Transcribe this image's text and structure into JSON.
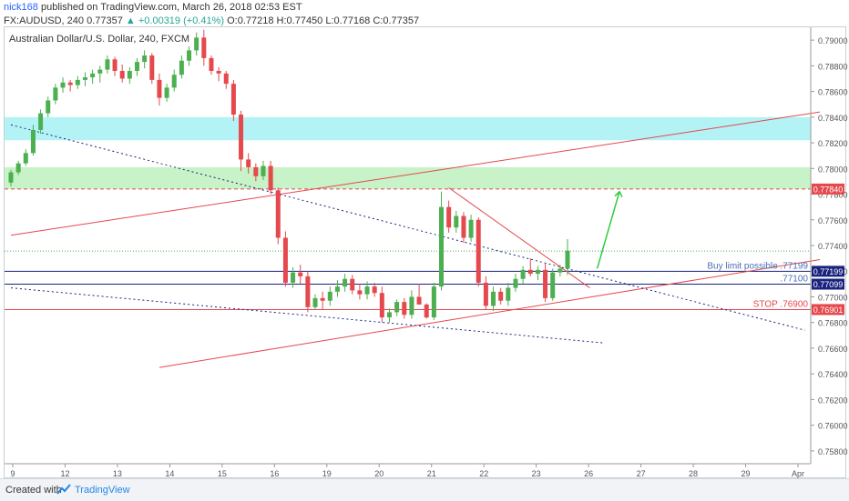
{
  "header": {
    "author": "nick168",
    "published_text": " published on TradingView.com, March 26, 2018 02:53 EST",
    "symbol_line": "FX:AUDUSD, 240  0.77357",
    "change": " ▲ +0.00319 (+0.41%)",
    "ohlc": " O:0.77218 H:0.77450 L:0.77168 C:0.77357"
  },
  "footer": {
    "created_with": "Created with",
    "brand": "TradingView"
  },
  "chart_data": {
    "type": "candlestick",
    "title": "Australian Dollar/U.S. Dollar, 240, FXCM",
    "ylim": [
      0.757,
      0.791
    ],
    "y_ticks": [
      "0.79000",
      "0.78800",
      "0.78600",
      "0.78400",
      "0.78200",
      "0.78000",
      "0.77800",
      "0.77600",
      "0.77400",
      "0.77200",
      "0.77000",
      "0.76800",
      "0.76600",
      "0.76400",
      "0.76200",
      "0.76000",
      "0.75800"
    ],
    "x_tick_labels": [
      "9",
      "12",
      "13",
      "14",
      "15",
      "16",
      "19",
      "20",
      "21",
      "22",
      "23",
      "26",
      "27",
      "28",
      "29",
      "Apr"
    ],
    "colors": {
      "up": "#4caf50",
      "down": "#e5484d",
      "accent_line": "#e5484d",
      "blue_line": "#1a237e",
      "arrow": "#2ecc40"
    },
    "price_labels": [
      {
        "text": "0.77840",
        "price": 0.7784,
        "color": "#e5484d"
      },
      {
        "text": "0.77199",
        "price": 0.77199,
        "color": "#1a237e"
      },
      {
        "text": "0.77099",
        "price": 0.77099,
        "color": "#1a237e"
      },
      {
        "text": "0.76901",
        "price": 0.76901,
        "color": "#e5484d"
      }
    ],
    "annotations": [
      {
        "text": "Buy limit possible .77199",
        "price": 0.77199,
        "color": "#4a6fb5"
      },
      {
        "text": ".77100",
        "price": 0.771,
        "color": "#4a6fb5"
      },
      {
        "text": "STOP .76900",
        "price": 0.769,
        "color": "#e5484d"
      }
    ],
    "zones": [
      {
        "name": "resistance-zone-upper",
        "from": 0.7822,
        "to": 0.784,
        "color": "#b3f3f6"
      },
      {
        "name": "resistance-zone-lower",
        "from": 0.7784,
        "to": 0.7801,
        "color": "#c8f2c8"
      }
    ],
    "candles": [
      [
        0.7789,
        0.7799,
        0.7786,
        0.7797
      ],
      [
        0.7797,
        0.7806,
        0.7795,
        0.7804
      ],
      [
        0.7804,
        0.7815,
        0.7802,
        0.7812
      ],
      [
        0.7812,
        0.7834,
        0.781,
        0.783
      ],
      [
        0.783,
        0.7846,
        0.7827,
        0.7843
      ],
      [
        0.7843,
        0.7856,
        0.784,
        0.7853
      ],
      [
        0.7853,
        0.7866,
        0.785,
        0.7863
      ],
      [
        0.7863,
        0.7871,
        0.7859,
        0.7867
      ],
      [
        0.7867,
        0.7869,
        0.786,
        0.7865
      ],
      [
        0.7865,
        0.7872,
        0.7862,
        0.7869
      ],
      [
        0.7869,
        0.7875,
        0.7864,
        0.7871
      ],
      [
        0.7871,
        0.7877,
        0.7866,
        0.7874
      ],
      [
        0.7874,
        0.788,
        0.7867,
        0.7877
      ],
      [
        0.7877,
        0.7888,
        0.7874,
        0.7885
      ],
      [
        0.7885,
        0.7887,
        0.7872,
        0.7876
      ],
      [
        0.7876,
        0.7881,
        0.7867,
        0.787
      ],
      [
        0.787,
        0.7879,
        0.7866,
        0.7876
      ],
      [
        0.7876,
        0.7886,
        0.7872,
        0.7883
      ],
      [
        0.7883,
        0.7892,
        0.7878,
        0.7888
      ],
      [
        0.7888,
        0.789,
        0.7866,
        0.7869
      ],
      [
        0.7869,
        0.7874,
        0.7849,
        0.7855
      ],
      [
        0.7855,
        0.7866,
        0.7852,
        0.7863
      ],
      [
        0.7863,
        0.7877,
        0.786,
        0.7873
      ],
      [
        0.7873,
        0.7888,
        0.787,
        0.7884
      ],
      [
        0.7884,
        0.7895,
        0.788,
        0.7892
      ],
      [
        0.7892,
        0.7906,
        0.7888,
        0.7902
      ],
      [
        0.7902,
        0.7908,
        0.788,
        0.7886
      ],
      [
        0.7886,
        0.7888,
        0.7873,
        0.7876
      ],
      [
        0.7876,
        0.7879,
        0.7868,
        0.7874
      ],
      [
        0.7874,
        0.7876,
        0.7862,
        0.7866
      ],
      [
        0.7866,
        0.7869,
        0.7837,
        0.7842
      ],
      [
        0.7842,
        0.7845,
        0.7798,
        0.7807
      ],
      [
        0.7807,
        0.7812,
        0.7796,
        0.7801
      ],
      [
        0.7801,
        0.7804,
        0.779,
        0.7794
      ],
      [
        0.7794,
        0.7806,
        0.7791,
        0.7802
      ],
      [
        0.7802,
        0.7806,
        0.778,
        0.7783
      ],
      [
        0.7783,
        0.7785,
        0.7741,
        0.7746
      ],
      [
        0.7746,
        0.7751,
        0.7708,
        0.7711
      ],
      [
        0.7711,
        0.7723,
        0.7707,
        0.7719
      ],
      [
        0.7719,
        0.7725,
        0.771,
        0.7716
      ],
      [
        0.7716,
        0.772,
        0.7688,
        0.7692
      ],
      [
        0.7692,
        0.7702,
        0.769,
        0.7699
      ],
      [
        0.7699,
        0.7704,
        0.769,
        0.7697
      ],
      [
        0.7697,
        0.7708,
        0.7693,
        0.7704
      ],
      [
        0.7704,
        0.7713,
        0.77,
        0.7708
      ],
      [
        0.7708,
        0.7718,
        0.7704,
        0.7714
      ],
      [
        0.7714,
        0.7717,
        0.7702,
        0.7705
      ],
      [
        0.7705,
        0.771,
        0.7698,
        0.7702
      ],
      [
        0.7702,
        0.7712,
        0.7698,
        0.7708
      ],
      [
        0.7708,
        0.7711,
        0.77,
        0.7703
      ],
      [
        0.7703,
        0.7708,
        0.768,
        0.7684
      ],
      [
        0.7684,
        0.7691,
        0.768,
        0.7688
      ],
      [
        0.7688,
        0.7698,
        0.7685,
        0.7696
      ],
      [
        0.7696,
        0.7699,
        0.7683,
        0.7686
      ],
      [
        0.7686,
        0.7705,
        0.7683,
        0.77
      ],
      [
        0.77,
        0.771,
        0.7696,
        0.7694
      ],
      [
        0.7694,
        0.7695,
        0.7683,
        0.7684
      ],
      [
        0.7684,
        0.7711,
        0.7682,
        0.7708
      ],
      [
        0.7708,
        0.7782,
        0.7705,
        0.777
      ],
      [
        0.777,
        0.7775,
        0.775,
        0.7754
      ],
      [
        0.7754,
        0.7767,
        0.775,
        0.7763
      ],
      [
        0.7763,
        0.7766,
        0.7742,
        0.7746
      ],
      [
        0.7746,
        0.7764,
        0.7743,
        0.776
      ],
      [
        0.776,
        0.7762,
        0.7708,
        0.7711
      ],
      [
        0.7711,
        0.7716,
        0.769,
        0.7693
      ],
      [
        0.7693,
        0.7708,
        0.7689,
        0.7704
      ],
      [
        0.7704,
        0.7707,
        0.7694,
        0.7697
      ],
      [
        0.7697,
        0.7711,
        0.7693,
        0.7707
      ],
      [
        0.7707,
        0.7718,
        0.7704,
        0.7714
      ],
      [
        0.7714,
        0.7724,
        0.771,
        0.7721
      ],
      [
        0.7721,
        0.773,
        0.7716,
        0.7718
      ],
      [
        0.7718,
        0.7724,
        0.7713,
        0.7721
      ],
      [
        0.7721,
        0.7726,
        0.7696,
        0.7699
      ],
      [
        0.7699,
        0.7722,
        0.7697,
        0.7719
      ],
      [
        0.7719,
        0.7725,
        0.7716,
        0.7722
      ],
      [
        0.7722,
        0.7745,
        0.7717,
        0.7736
      ]
    ]
  }
}
